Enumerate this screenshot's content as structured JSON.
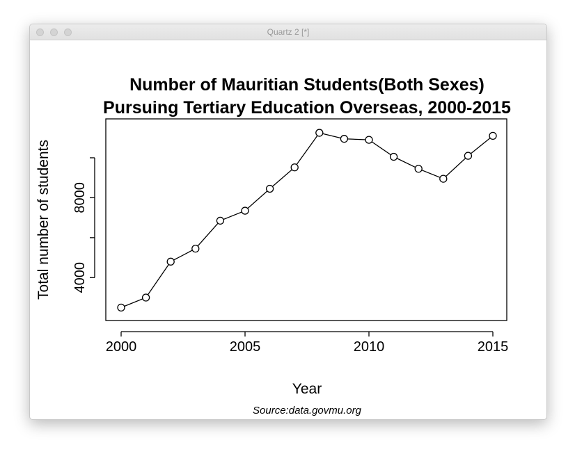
{
  "window": {
    "title": "Quartz 2 [*]"
  },
  "chart_data": {
    "type": "line",
    "title_line1": "Number of Mauritian Students(Both Sexes)",
    "title_line2": "Pursuing Tertiary Education Overseas, 2000-2015",
    "xlabel": "Year",
    "ylabel": "Total number of students",
    "source": "Source:data.govmu.org",
    "x": [
      2000,
      2001,
      2002,
      2003,
      2004,
      2005,
      2006,
      2007,
      2008,
      2009,
      2010,
      2011,
      2012,
      2013,
      2014,
      2015
    ],
    "values": [
      2500,
      3000,
      4800,
      5450,
      6850,
      7350,
      8450,
      9520,
      11250,
      10950,
      10900,
      10050,
      9450,
      8950,
      10100,
      11100
    ],
    "xlim": [
      2000,
      2015
    ],
    "ylim": [
      2200,
      11600
    ],
    "xticks": [
      2000,
      2005,
      2010,
      2015
    ],
    "yticks": [
      4000,
      8000
    ],
    "marker": "open-circle",
    "line_color": "#000000",
    "grid": false
  }
}
